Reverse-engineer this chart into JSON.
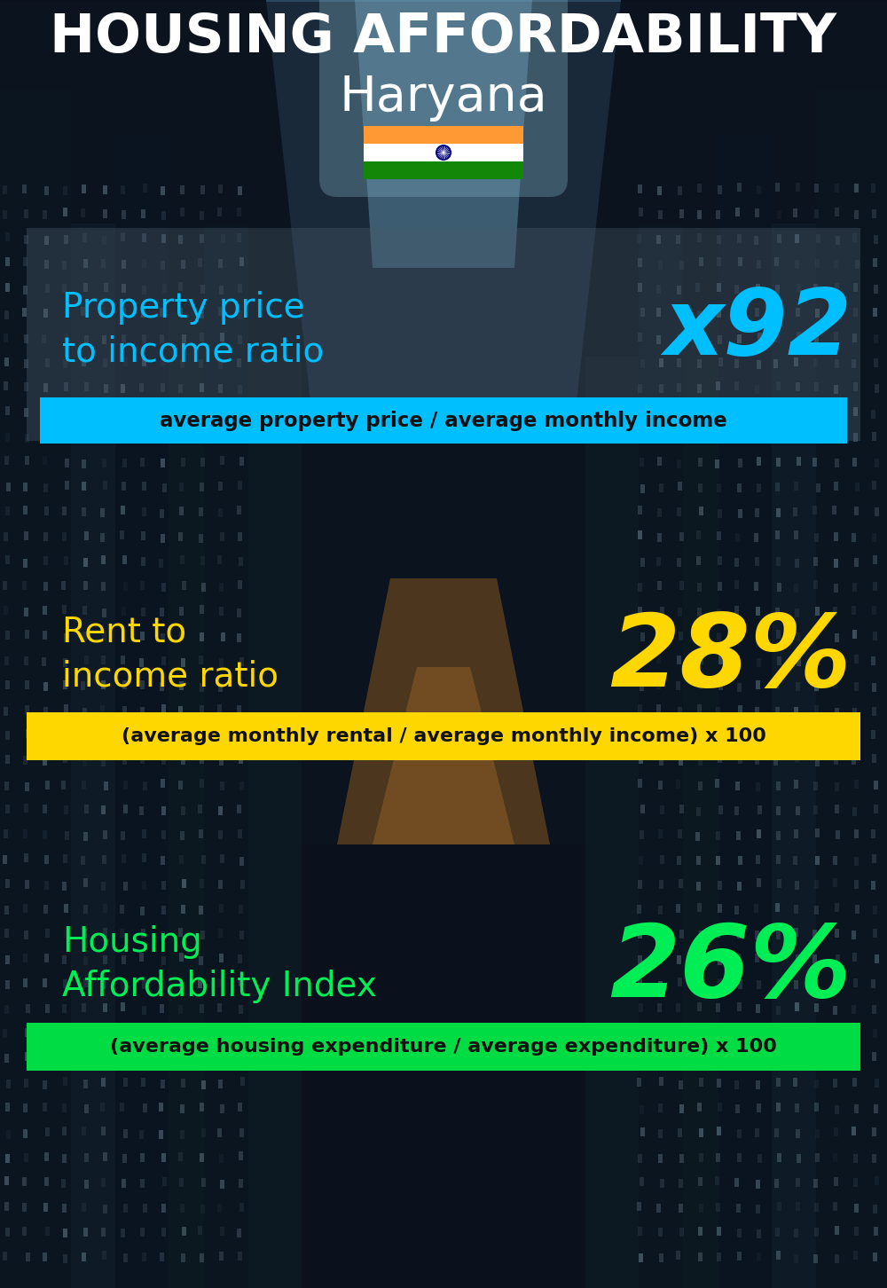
{
  "title_line1": "HOUSING AFFORDABILITY",
  "title_line2": "Haryana",
  "section1_label": "Property price\nto income ratio",
  "section1_value": "x92",
  "section1_sublabel": "average property price / average monthly income",
  "section1_label_color": "#00BFFF",
  "section1_value_color": "#00BFFF",
  "section1_bar_color": "#00BFFF",
  "section2_label": "Rent to\nincome ratio",
  "section2_value": "28%",
  "section2_sublabel": "(average monthly rental / average monthly income) x 100",
  "section2_label_color": "#FFD700",
  "section2_value_color": "#FFD700",
  "section2_bar_color": "#FFD700",
  "section3_label": "Housing\nAffordability Index",
  "section3_value": "26%",
  "section3_sublabel": "(average housing expenditure / average expenditure) x 100",
  "section3_label_color": "#00EE55",
  "section3_value_color": "#00EE55",
  "section3_bar_color": "#00DD44",
  "title_color": "#FFFFFF",
  "subtitle_color": "#FFFFFF",
  "sublabel_text_color": "#111111",
  "flag_orange": "#FF9933",
  "flag_white": "#FFFFFF",
  "flag_green": "#138808",
  "flag_navy": "#000080"
}
